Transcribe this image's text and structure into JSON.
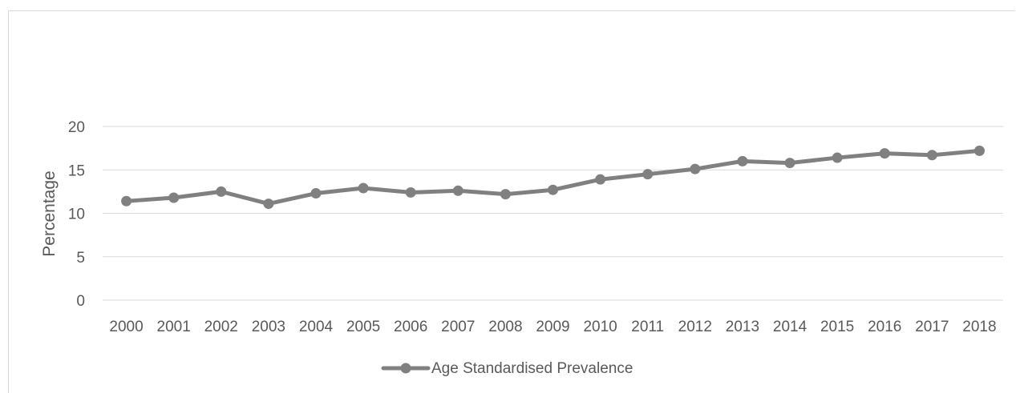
{
  "chart_data": {
    "type": "line",
    "title": "",
    "xlabel": "",
    "ylabel": "Percentage",
    "ylim": [
      0,
      20
    ],
    "yticks": [
      0,
      5,
      10,
      15,
      20
    ],
    "grid": true,
    "legend_position": "bottom",
    "categories": [
      "2000",
      "2001",
      "2002",
      "2003",
      "2004",
      "2005",
      "2006",
      "2007",
      "2008",
      "2009",
      "2010",
      "2011",
      "2012",
      "2013",
      "2014",
      "2015",
      "2016",
      "2017",
      "2018"
    ],
    "series": [
      {
        "name": "Age Standardised Prevalence",
        "color": "#808080",
        "values": [
          11.4,
          11.8,
          12.5,
          11.1,
          12.3,
          12.9,
          12.4,
          12.6,
          12.2,
          12.7,
          13.9,
          14.5,
          15.1,
          16.0,
          15.8,
          16.4,
          16.9,
          16.7,
          17.2
        ]
      }
    ]
  }
}
